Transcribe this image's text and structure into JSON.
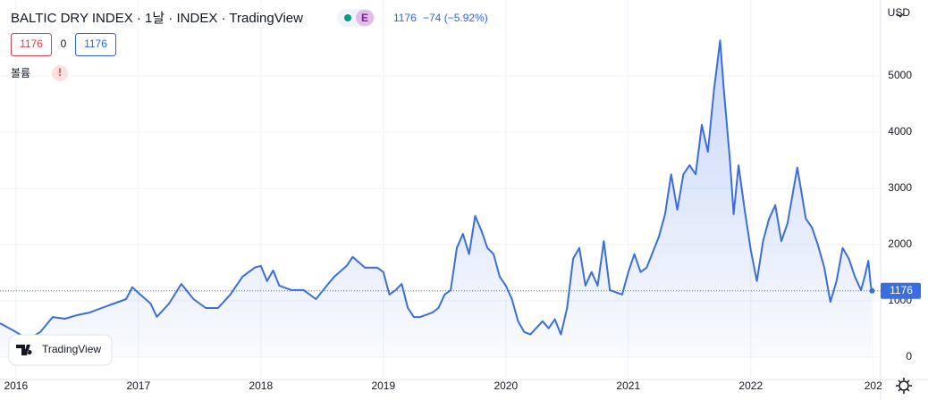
{
  "header": {
    "title": "BALTIC DRY INDEX · 1날 · INDEX · TradingView",
    "badge": "E",
    "last": "1176",
    "change": "−74 (−5.92%)",
    "open_box": "1176",
    "mid": "0",
    "close_box": "1176",
    "volume": "볼륨",
    "alert": "!"
  },
  "currency": "USD",
  "logo": "TradingView",
  "chart_data": {
    "type": "area",
    "color": "#3a6ee0",
    "grid": true,
    "x": [
      2015.87,
      2016.0,
      2016.1,
      2016.2,
      2016.3,
      2016.4,
      2016.5,
      2016.6,
      2016.7,
      2016.8,
      2016.9,
      2016.95,
      2017.0,
      2017.1,
      2017.15,
      2017.25,
      2017.35,
      2017.45,
      2017.55,
      2017.65,
      2017.75,
      2017.85,
      2017.95,
      2018.0,
      2018.05,
      2018.1,
      2018.15,
      2018.25,
      2018.35,
      2018.45,
      2018.55,
      2018.6,
      2018.7,
      2018.75,
      2018.85,
      2018.95,
      2019.0,
      2019.05,
      2019.1,
      2019.15,
      2019.2,
      2019.25,
      2019.3,
      2019.4,
      2019.45,
      2019.5,
      2019.55,
      2019.6,
      2019.65,
      2019.7,
      2019.75,
      2019.8,
      2019.85,
      2019.9,
      2019.95,
      2020.0,
      2020.05,
      2020.1,
      2020.15,
      2020.2,
      2020.3,
      2020.35,
      2020.4,
      2020.45,
      2020.5,
      2020.55,
      2020.6,
      2020.65,
      2020.7,
      2020.75,
      2020.8,
      2020.85,
      2020.95,
      2021.0,
      2021.05,
      2021.1,
      2021.15,
      2021.25,
      2021.3,
      2021.35,
      2021.4,
      2021.45,
      2021.5,
      2021.55,
      2021.6,
      2021.65,
      2021.7,
      2021.75,
      2021.78,
      2021.83,
      2021.86,
      2021.9,
      2021.95,
      2022.0,
      2022.05,
      2022.1,
      2022.15,
      2022.2,
      2022.25,
      2022.3,
      2022.38,
      2022.45,
      2022.5,
      2022.55,
      2022.6,
      2022.65,
      2022.7,
      2022.75,
      2022.8,
      2022.85,
      2022.9,
      2022.93,
      2022.96,
      2022.98,
      2022.99
    ],
    "values": [
      600,
      445,
      317,
      445,
      710,
      680,
      745,
      790,
      870,
      950,
      1030,
      1240,
      1140,
      950,
      715,
      950,
      1300,
      1030,
      870,
      870,
      1110,
      1430,
      1590,
      1620,
      1350,
      1540,
      1270,
      1190,
      1190,
      1030,
      1300,
      1430,
      1620,
      1780,
      1590,
      1590,
      1510,
      1110,
      1190,
      1300,
      870,
      710,
      710,
      790,
      870,
      1110,
      1190,
      1940,
      2190,
      1830,
      2510,
      2250,
      1940,
      1830,
      1430,
      1270,
      1030,
      635,
      445,
      400,
      635,
      510,
      670,
      400,
      870,
      1750,
      1940,
      1270,
      1510,
      1270,
      2060,
      1190,
      1110,
      1510,
      1830,
      1510,
      1590,
      2140,
      2540,
      3250,
      2620,
      3250,
      3410,
      3250,
      4130,
      3650,
      4760,
      5630,
      4760,
      3490,
      2540,
      3410,
      2620,
      1900,
      1350,
      2060,
      2460,
      2700,
      2060,
      2380,
      3370,
      2460,
      2300,
      1980,
      1590,
      980,
      1350,
      1940,
      1750,
      1430,
      1190,
      1430,
      1710,
      1270,
      1176
    ],
    "last_value": 1176,
    "xlim": [
      2015.87,
      2023.06
    ],
    "xticks": [
      2016,
      2017,
      2018,
      2019,
      2020,
      2021,
      2022,
      {
        "value": 2023,
        "label": "202"
      }
    ],
    "ylim": [
      -400,
      6350
    ],
    "yticks": [
      0,
      1000,
      2000,
      3000,
      4000,
      5000
    ]
  }
}
